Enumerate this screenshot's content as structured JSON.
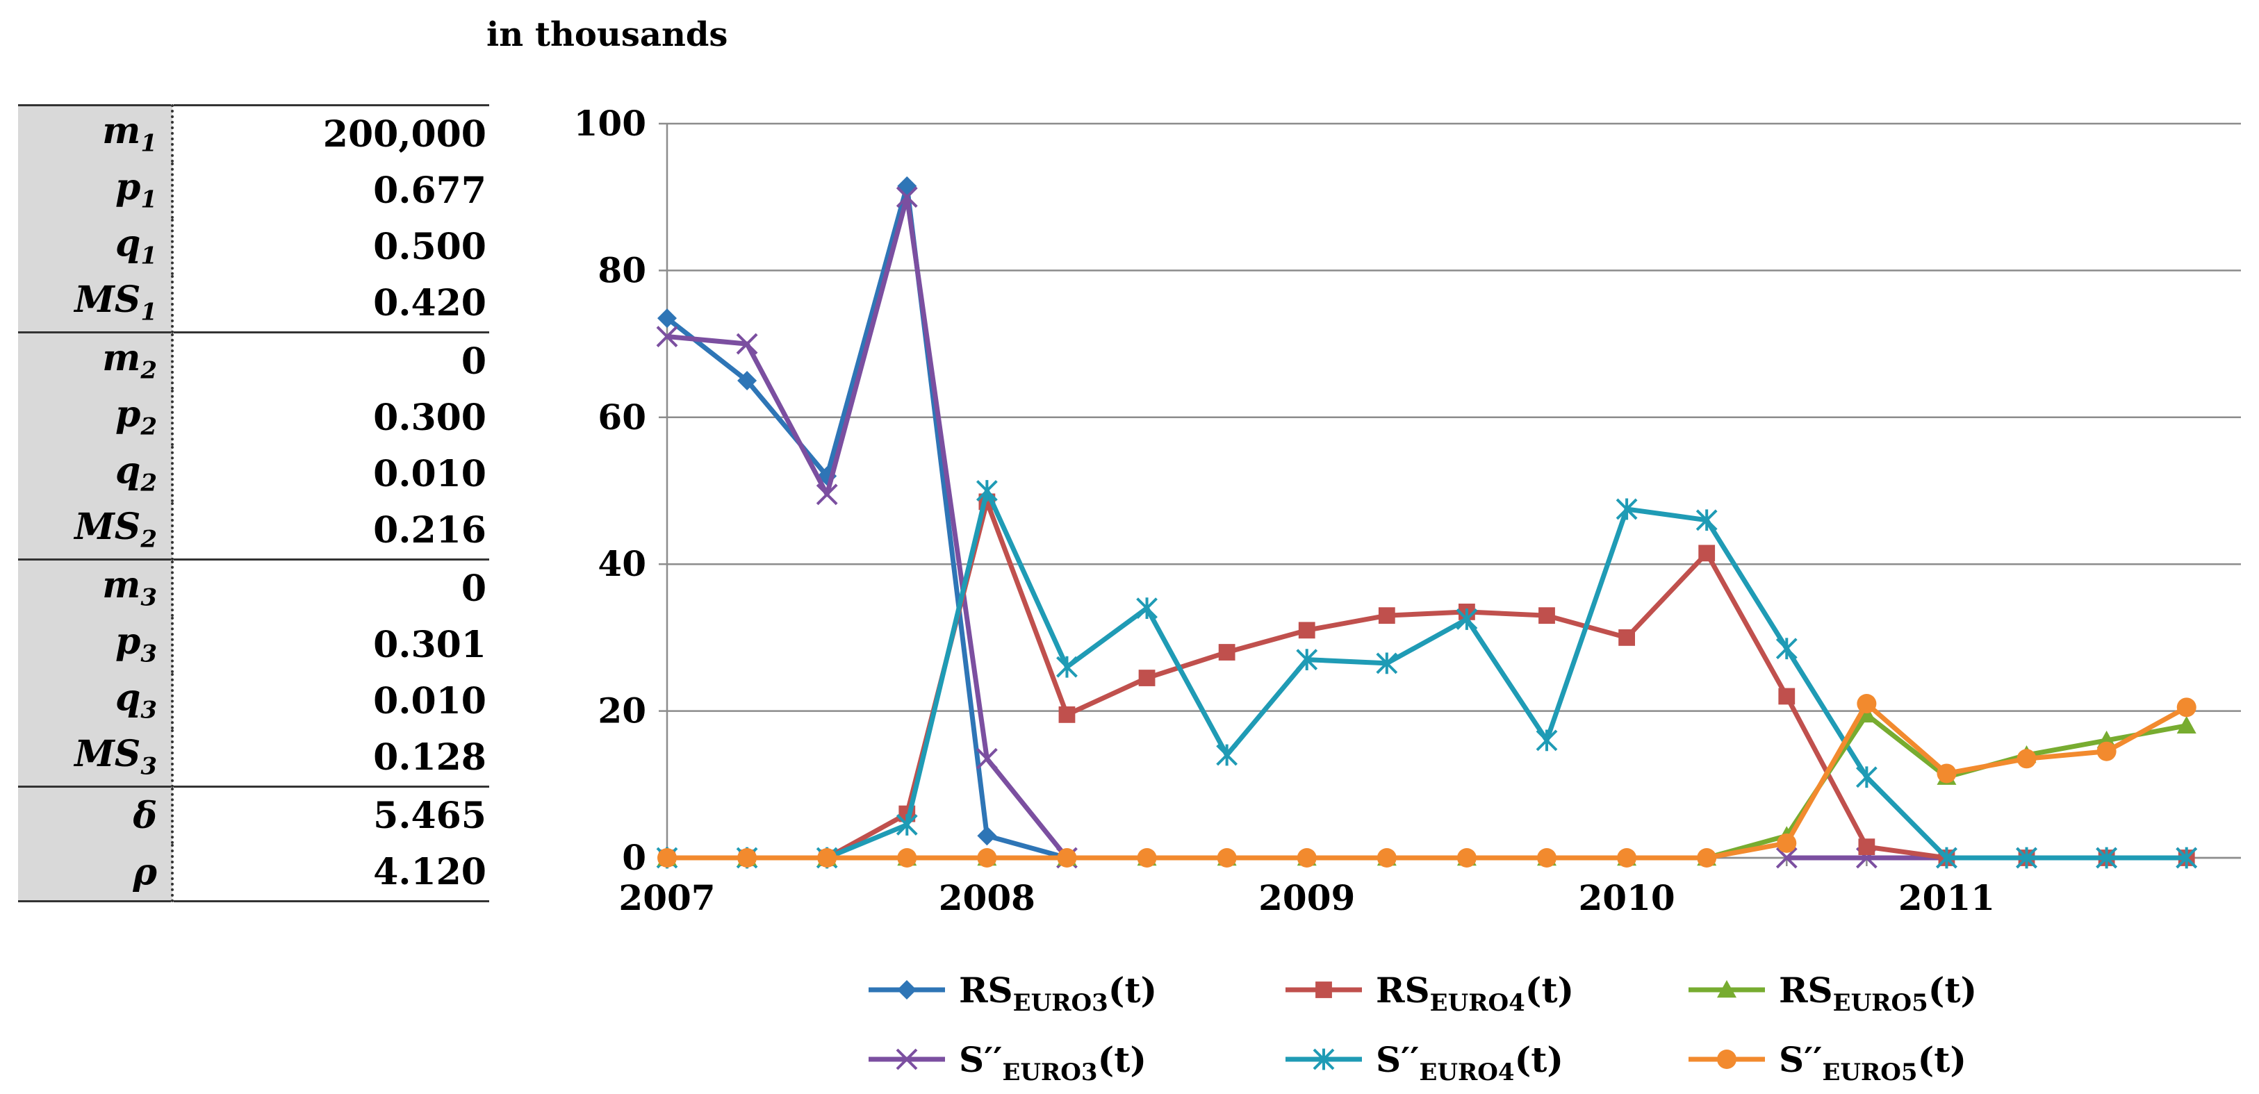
{
  "unit_label": "in thousands",
  "params": [
    {
      "base": "m",
      "sub": "1",
      "value": "200,000"
    },
    {
      "base": "p",
      "sub": "1",
      "value": "0.677"
    },
    {
      "base": "q",
      "sub": "1",
      "value": "0.500"
    },
    {
      "base": "MS",
      "sub": "1",
      "value": "0.420"
    },
    {
      "base": "m",
      "sub": "2",
      "value": "0"
    },
    {
      "base": "p",
      "sub": "2",
      "value": "0.300"
    },
    {
      "base": "q",
      "sub": "2",
      "value": "0.010"
    },
    {
      "base": "MS",
      "sub": "2",
      "value": "0.216"
    },
    {
      "base": "m",
      "sub": "3",
      "value": "0"
    },
    {
      "base": "p",
      "sub": "3",
      "value": "0.301"
    },
    {
      "base": "q",
      "sub": "3",
      "value": "0.010"
    },
    {
      "base": "MS",
      "sub": "3",
      "value": "0.128"
    },
    {
      "base": "δ",
      "sub": "",
      "value": "5.465"
    },
    {
      "base": "ρ",
      "sub": "",
      "value": "4.120"
    }
  ],
  "chart_data": {
    "type": "line",
    "ylim": [
      0,
      100
    ],
    "yticks": [
      "0",
      "20",
      "40",
      "60",
      "80",
      "100"
    ],
    "ytick_values": [
      0,
      20,
      40,
      60,
      80,
      100
    ],
    "xlim": [
      2007,
      2011.92
    ],
    "xticks": [
      "2007",
      "2008",
      "2009",
      "2010",
      "2011"
    ],
    "xtick_values": [
      2007,
      2008,
      2009,
      2010,
      2011
    ],
    "x": [
      2007,
      2007.25,
      2007.5,
      2007.75,
      2008,
      2008.25,
      2008.5,
      2008.75,
      2009,
      2009.25,
      2009.5,
      2009.75,
      2010,
      2010.25,
      2010.5,
      2010.75,
      2011,
      2011.25,
      2011.5,
      2011.75
    ],
    "series": [
      {
        "name_main": "RS",
        "name_sub": "EURO3",
        "name_tail": "(t)",
        "color": "#2E75B6",
        "marker": "diamond",
        "values": [
          73.5,
          65,
          52,
          91.5,
          3,
          0,
          null,
          null,
          null,
          null,
          null,
          null,
          null,
          null,
          null,
          null,
          null,
          null,
          null,
          null
        ]
      },
      {
        "name_main": "S′′",
        "name_sub": "EURO3",
        "name_tail": "(t)",
        "color": "#7B4FA0",
        "marker": "x",
        "values": [
          71,
          70,
          49.5,
          90,
          13.5,
          0,
          null,
          null,
          null,
          null,
          null,
          null,
          null,
          null,
          0,
          0,
          0,
          0,
          0,
          0
        ]
      },
      {
        "name_main": "RS",
        "name_sub": "EURO4",
        "name_tail": "(t)",
        "color": "#C0504D",
        "marker": "square",
        "values": [
          0,
          0,
          0,
          6,
          48.5,
          19.5,
          24.5,
          28,
          31,
          33,
          33.5,
          33,
          30,
          41.5,
          22,
          1.5,
          0,
          0,
          0,
          0
        ]
      },
      {
        "name_main": "S′′",
        "name_sub": "EURO4",
        "name_tail": "(t)",
        "color": "#1F9BB5",
        "marker": "asterisk",
        "values": [
          0,
          0,
          0,
          4.5,
          50,
          26,
          34,
          14,
          27,
          26.5,
          32.5,
          16,
          47.5,
          46,
          28.5,
          11,
          0,
          0,
          0,
          0
        ]
      },
      {
        "name_main": "RS",
        "name_sub": "EURO5",
        "name_tail": "(t)",
        "color": "#77AC30",
        "marker": "triangle",
        "values": [
          0,
          0,
          0,
          0,
          0,
          0,
          0,
          0,
          0,
          0,
          0,
          0,
          0,
          0,
          3,
          19.5,
          11,
          14,
          16,
          18
        ]
      },
      {
        "name_main": "S′′",
        "name_sub": "EURO5",
        "name_tail": "(t)",
        "color": "#F28A2E",
        "marker": "circle",
        "values": [
          0,
          0,
          0,
          0,
          0,
          0,
          0,
          0,
          0,
          0,
          0,
          0,
          0,
          0,
          2,
          21,
          11.5,
          13.5,
          14.5,
          20.5
        ]
      }
    ],
    "legend_order": [
      0,
      2,
      4,
      1,
      3,
      5
    ]
  }
}
